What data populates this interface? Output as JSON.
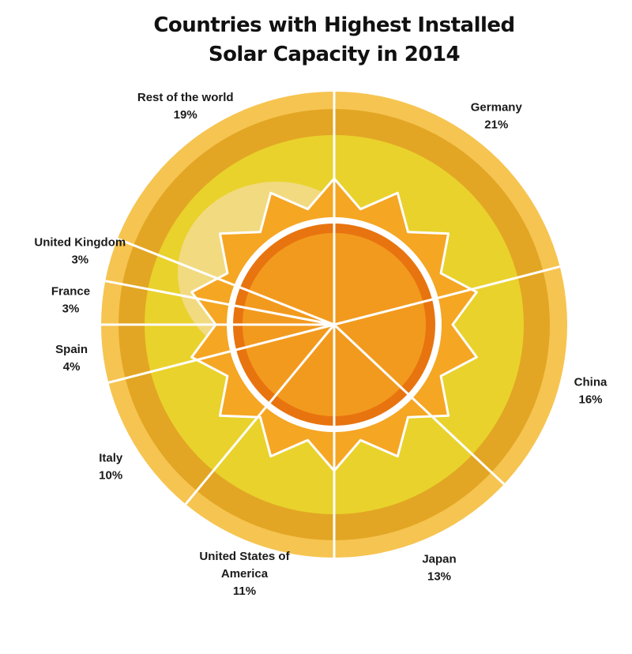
{
  "chart_data": {
    "type": "pie",
    "title_lines": [
      "Countries with Highest Installed",
      "Solar Capacity in 2014"
    ],
    "slices": [
      {
        "label": "Germany",
        "value": 21,
        "value_label": "21%"
      },
      {
        "label": "China",
        "value": 16,
        "value_label": "16%"
      },
      {
        "label": "Japan",
        "value": 13,
        "value_label": "13%"
      },
      {
        "label": "United States of America",
        "label_lines": [
          "United States of",
          "America"
        ],
        "value": 11,
        "value_label": "11%"
      },
      {
        "label": "Italy",
        "value": 10,
        "value_label": "10%"
      },
      {
        "label": "Spain",
        "value": 4,
        "value_label": "4%"
      },
      {
        "label": "France",
        "value": 3,
        "value_label": "3%"
      },
      {
        "label": "United Kingdom",
        "value": 3,
        "value_label": "3%"
      },
      {
        "label": "Rest of the world",
        "value": 19,
        "value_label": "19%"
      }
    ],
    "colors": {
      "outer_rim": "#F6C450",
      "outer_ring": "#E2A624",
      "inner_field": "#E9D22C",
      "sun_glow": "#F2DA80",
      "sun_rays": "#F5A623",
      "sun_outline": "#FFFFFF",
      "sun_core_ring": "#E8740F",
      "sun_core": "#F29A1E",
      "divider": "#FFFFFF"
    }
  }
}
